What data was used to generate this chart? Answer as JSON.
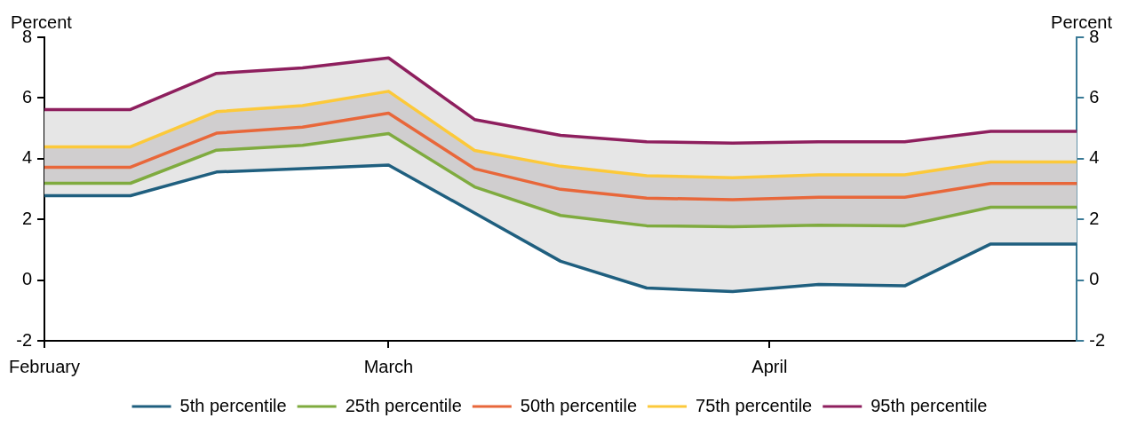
{
  "chart_data": {
    "type": "line",
    "ylabel": "Percent",
    "y2label": "Percent",
    "x": [
      "--02-01",
      "--02-08",
      "--02-15",
      "--02-22",
      "--03-01",
      "--03-08",
      "--03-15",
      "--03-22",
      "--03-29",
      "--04-05",
      "--04-12",
      "--04-19",
      "--04-26"
    ],
    "xlim": [
      "--02-01",
      "--04-26"
    ],
    "xticks": [
      {
        "value": "--02-01",
        "label": "February"
      },
      {
        "value": "--03-01",
        "label": "March"
      },
      {
        "value": "--04-01",
        "label": "April"
      }
    ],
    "ylim": [
      -2,
      8
    ],
    "yticks": [
      -2,
      0,
      2,
      4,
      6,
      8
    ],
    "y2lim": [
      -2,
      8
    ],
    "y2ticks": [
      -2,
      0,
      2,
      4,
      6,
      8
    ],
    "series": [
      {
        "name": "5th percentile",
        "color": "#1f5f7f",
        "values": [
          2.78,
          2.78,
          3.56,
          3.67,
          3.79,
          2.21,
          0.62,
          -0.26,
          -0.38,
          -0.14,
          -0.19,
          1.19,
          1.19
        ],
        "upper": [
          5.62,
          5.62,
          6.81,
          6.99,
          7.32,
          5.29,
          4.77,
          4.56,
          4.51,
          4.56,
          4.56,
          4.9,
          4.9
        ],
        "lower": [
          2.78,
          2.78,
          3.56,
          3.67,
          3.79,
          2.21,
          0.62,
          -0.26,
          -0.38,
          -0.14,
          -0.19,
          1.19,
          1.19
        ]
      },
      {
        "name": "25th percentile",
        "color": "#7fab3f",
        "values": [
          3.19,
          3.19,
          4.28,
          4.44,
          4.83,
          3.07,
          2.13,
          1.79,
          1.76,
          1.81,
          1.79,
          2.4,
          2.4
        ],
        "upper": [
          4.39,
          4.39,
          5.55,
          5.75,
          6.22,
          4.27,
          3.75,
          3.44,
          3.37,
          3.47,
          3.47,
          3.89,
          3.89
        ],
        "lower": [
          3.19,
          3.19,
          4.28,
          4.44,
          4.83,
          3.07,
          2.13,
          1.79,
          1.76,
          1.81,
          1.79,
          2.4,
          2.4
        ]
      },
      {
        "name": "50th percentile",
        "color": "#e8673a",
        "values": [
          3.72,
          3.72,
          4.84,
          5.04,
          5.5,
          3.67,
          2.99,
          2.7,
          2.65,
          2.73,
          2.73,
          3.18,
          3.18
        ]
      },
      {
        "name": "75th percentile",
        "color": "#fcc93a",
        "values": [
          4.39,
          4.39,
          5.55,
          5.75,
          6.22,
          4.27,
          3.75,
          3.44,
          3.37,
          3.47,
          3.47,
          3.89,
          3.89
        ]
      },
      {
        "name": "95th percentile",
        "color": "#8e1f5e",
        "values": [
          5.62,
          5.62,
          6.81,
          6.99,
          7.32,
          5.29,
          4.77,
          4.56,
          4.51,
          4.56,
          4.56,
          4.9,
          4.9
        ]
      }
    ],
    "legend": "bottom",
    "grid": false,
    "marker": "none",
    "line_style": "solid"
  }
}
